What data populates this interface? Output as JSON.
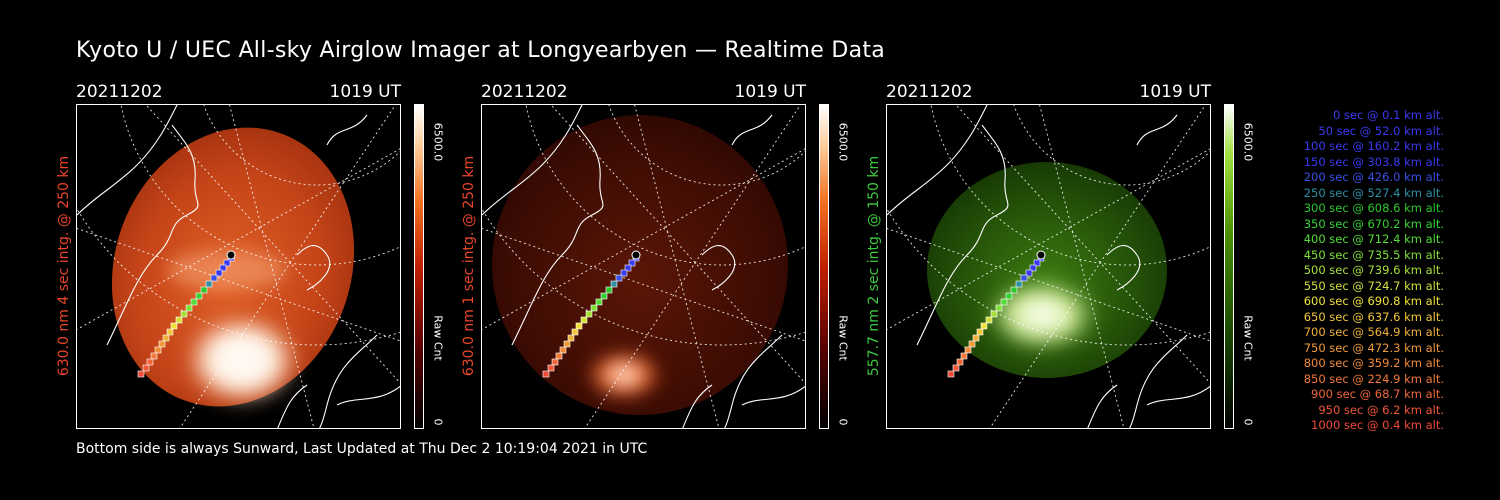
{
  "title": "Kyoto U / UEC All-sky Airglow Imager at Longyearbyen — Realtime Data",
  "footer": "Bottom side is always Sunward, Last Updated at Thu Dec  2 10:19:04 2021 in UTC",
  "panels": [
    {
      "date": "20211202",
      "time": "1019 UT",
      "ylabel": "630.0 nm 4 sec intg. @ 250 km",
      "label_color": "#e8452a",
      "cbar_max": "6500.0",
      "cbar_unit": "Raw Cnt",
      "cbar_min": "0",
      "theme": "red",
      "intensity": 1.0
    },
    {
      "date": "20211202",
      "time": "1019 UT",
      "ylabel": "630.0 nm 1 sec intg. @ 250 km",
      "label_color": "#e8452a",
      "cbar_max": "6500.0",
      "cbar_unit": "Raw Cnt",
      "cbar_min": "0",
      "theme": "red",
      "intensity": 0.35
    },
    {
      "date": "20211202",
      "time": "1019 UT",
      "ylabel": "557.7 nm 2 sec intg. @ 150 km",
      "label_color": "#3ec83e",
      "cbar_max": "6500.0",
      "cbar_unit": "Raw Cnt",
      "cbar_min": "0",
      "theme": "green",
      "intensity": 0.7
    }
  ],
  "legend": [
    {
      "text": "0 sec @    0.1 km alt.",
      "color": "#3a3af0"
    },
    {
      "text": "50 sec @   52.0 km alt.",
      "color": "#3a3af0"
    },
    {
      "text": "100 sec @  160.2 km alt.",
      "color": "#3a3af0"
    },
    {
      "text": "150 sec @  303.8 km alt.",
      "color": "#3a3af0"
    },
    {
      "text": "200 sec @  426.0 km alt.",
      "color": "#3a50e6"
    },
    {
      "text": "250 sec @  527.4 km alt.",
      "color": "#2f90a6"
    },
    {
      "text": "300 sec @  608.6 km alt.",
      "color": "#2ec82e"
    },
    {
      "text": "350 sec @  670.2 km alt.",
      "color": "#35d235"
    },
    {
      "text": "400 sec @  712.4 km alt.",
      "color": "#55dc3a"
    },
    {
      "text": "450 sec @  735.5 km alt.",
      "color": "#80e03a"
    },
    {
      "text": "500 sec @  739.6 km alt.",
      "color": "#a8e03a"
    },
    {
      "text": "550 sec @  724.7 km alt.",
      "color": "#d2e03a"
    },
    {
      "text": "600 sec @  690.8 km alt.",
      "color": "#f0e03a"
    },
    {
      "text": "650 sec @  637.6 km alt.",
      "color": "#f0c83a"
    },
    {
      "text": "700 sec @  564.9 km alt.",
      "color": "#f0b03a"
    },
    {
      "text": "750 sec @  472.3 km alt.",
      "color": "#f09a3a"
    },
    {
      "text": "800 sec @  359.2 km alt.",
      "color": "#f08a3a"
    },
    {
      "text": "850 sec @  224.9 km alt.",
      "color": "#f07a3a"
    },
    {
      "text": "900 sec @   68.7 km alt.",
      "color": "#f0683a"
    },
    {
      "text": "950 sec @    6.2 km alt.",
      "color": "#f0583a"
    },
    {
      "text": "1000 sec @    0.4 km alt.",
      "color": "#f04a3a"
    }
  ]
}
